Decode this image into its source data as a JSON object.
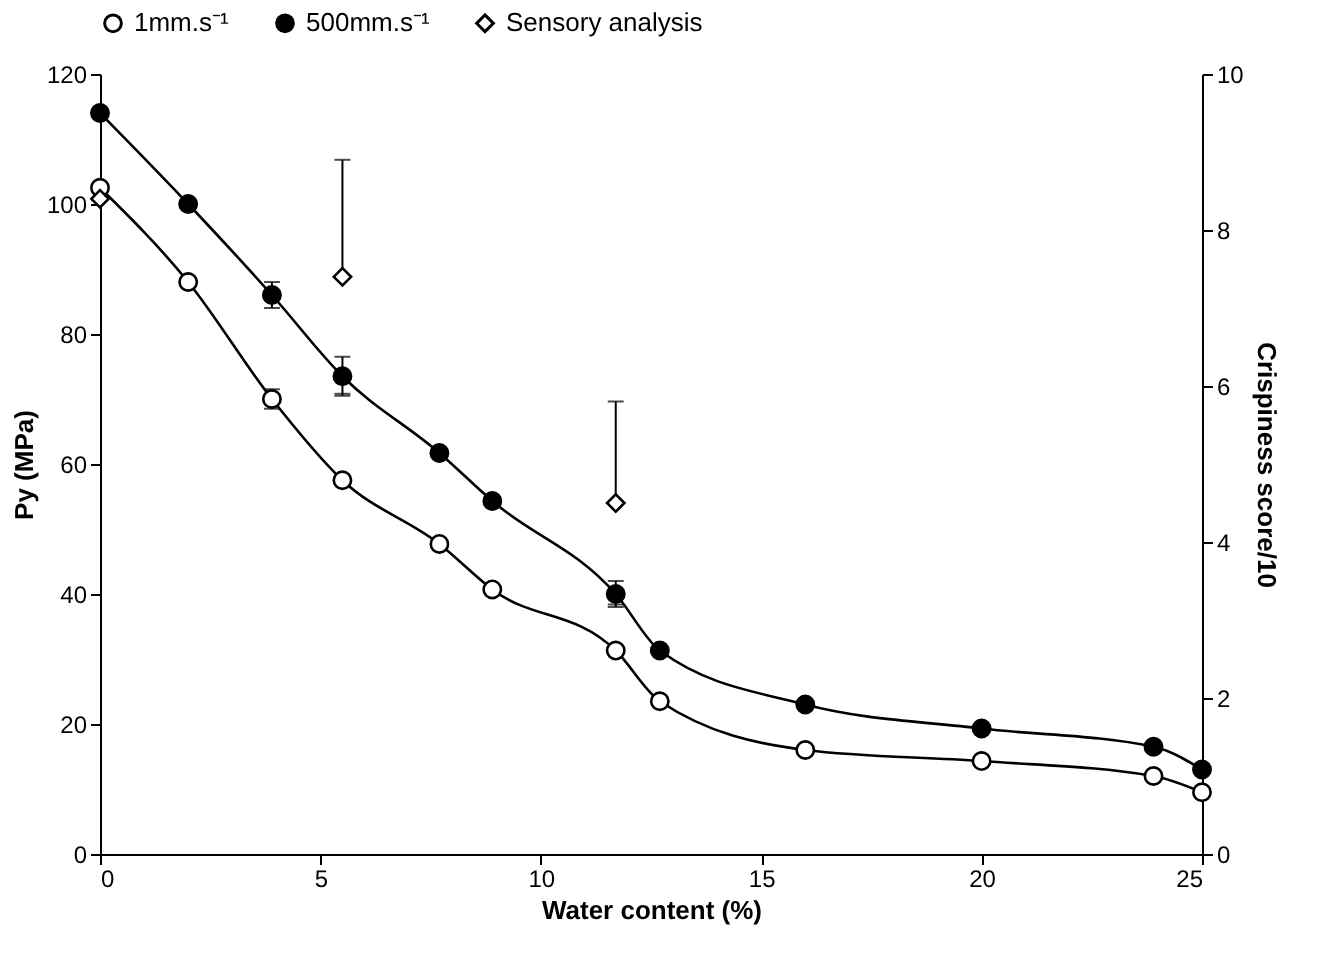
{
  "chart_data": {
    "type": "line",
    "xlabel": "Water content (%)",
    "ylabel": "Py (MPa)",
    "y2label": "Crispiness score/10",
    "x": [
      0,
      2,
      3.9,
      5.5,
      7.7,
      8.9,
      11.7,
      12.7,
      16,
      20,
      23.9,
      25
    ],
    "series": [
      {
        "name": "1mm.s⁻¹",
        "color": "#000000",
        "marker": "circle",
        "values": [
          102.5,
          88,
          70,
          57.5,
          47.7,
          40.7,
          31.3,
          23.5,
          16,
          14.3,
          12,
          9.5
        ],
        "errors": [
          null,
          null,
          1.5,
          null,
          null,
          null,
          null,
          null,
          null,
          null,
          null,
          null
        ]
      },
      {
        "name": "500mm.s⁻¹",
        "color": "#000000",
        "marker": "circle",
        "values": [
          114,
          100,
          86,
          73.5,
          61.7,
          54.3,
          40,
          31.3,
          23,
          19.3,
          16.5,
          13
        ],
        "errors": [
          null,
          null,
          2,
          3,
          null,
          null,
          2,
          null,
          null,
          null,
          null,
          null
        ]
      },
      {
        "name": "Sensory analysis",
        "color": "#000000",
        "type": "scatter",
        "marker": "diamond",
        "axis": "y2",
        "x": [
          0,
          5.5,
          11.7
        ],
        "values": [
          8.4,
          7.4,
          4.5
        ],
        "errors": [
          null,
          1.5,
          1.3
        ]
      }
    ],
    "xlim": [
      0,
      25
    ],
    "xticks": [
      0,
      5,
      10,
      15,
      20,
      25
    ],
    "ylim": [
      0,
      120
    ],
    "yticks": [
      0,
      20,
      40,
      60,
      80,
      100,
      120
    ],
    "y2lim": [
      0,
      10
    ],
    "y2ticks": [
      0,
      2,
      4,
      6,
      8,
      10
    ],
    "grid": false,
    "legend": "top"
  }
}
